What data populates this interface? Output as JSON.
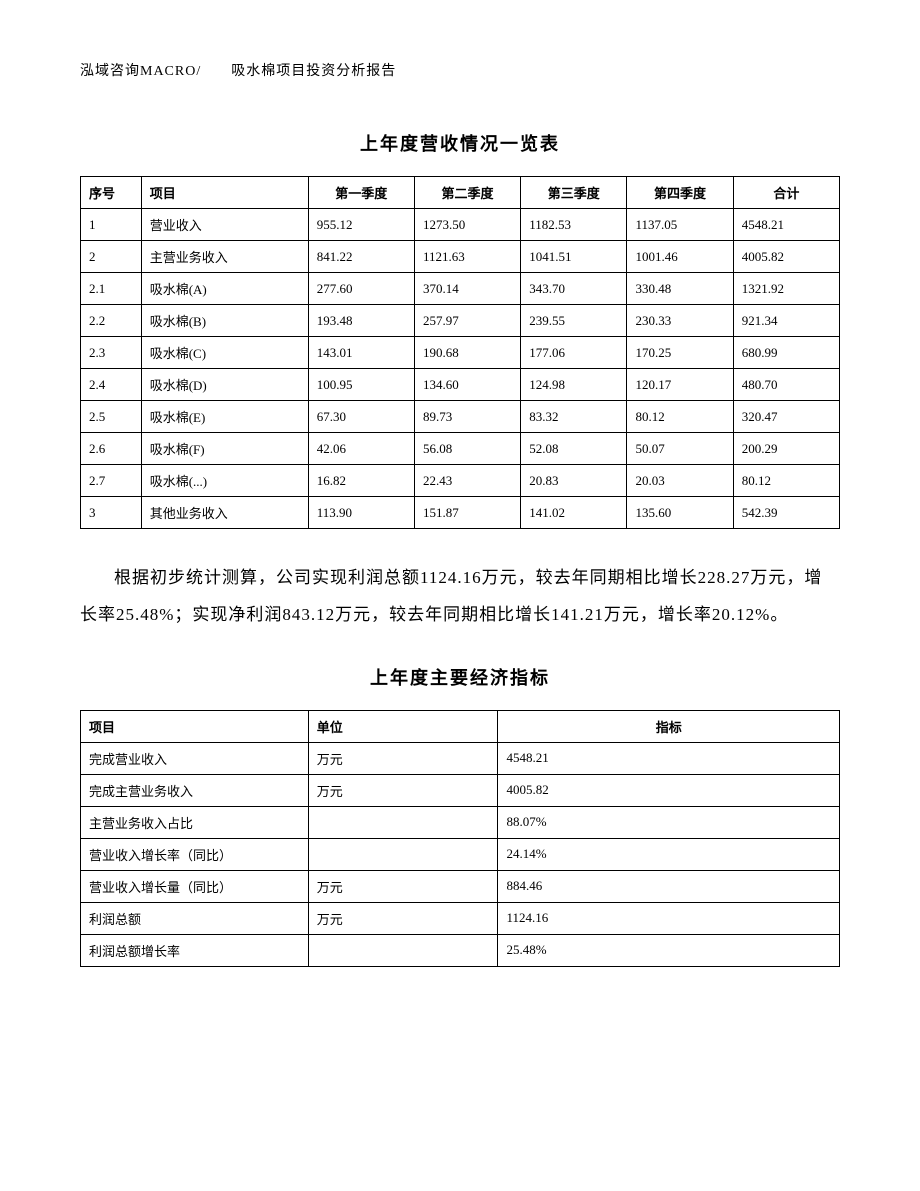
{
  "header": "泓域咨询MACRO/　　吸水棉项目投资分析报告",
  "table1": {
    "title": "上年度营收情况一览表",
    "headers": [
      "序号",
      "项目",
      "第一季度",
      "第二季度",
      "第三季度",
      "第四季度",
      "合计"
    ],
    "rows": [
      [
        "1",
        "营业收入",
        "955.12",
        "1273.50",
        "1182.53",
        "1137.05",
        "4548.21"
      ],
      [
        "2",
        "主营业务收入",
        "841.22",
        "1121.63",
        "1041.51",
        "1001.46",
        "4005.82"
      ],
      [
        "2.1",
        "吸水棉(A)",
        "277.60",
        "370.14",
        "343.70",
        "330.48",
        "1321.92"
      ],
      [
        "2.2",
        "吸水棉(B)",
        "193.48",
        "257.97",
        "239.55",
        "230.33",
        "921.34"
      ],
      [
        "2.3",
        "吸水棉(C)",
        "143.01",
        "190.68",
        "177.06",
        "170.25",
        "680.99"
      ],
      [
        "2.4",
        "吸水棉(D)",
        "100.95",
        "134.60",
        "124.98",
        "120.17",
        "480.70"
      ],
      [
        "2.5",
        "吸水棉(E)",
        "67.30",
        "89.73",
        "83.32",
        "80.12",
        "320.47"
      ],
      [
        "2.6",
        "吸水棉(F)",
        "42.06",
        "56.08",
        "52.08",
        "50.07",
        "200.29"
      ],
      [
        "2.7",
        "吸水棉(...)",
        "16.82",
        "22.43",
        "20.83",
        "20.03",
        "80.12"
      ],
      [
        "3",
        "其他业务收入",
        "113.90",
        "151.87",
        "141.02",
        "135.60",
        "542.39"
      ]
    ]
  },
  "paragraph": "根据初步统计测算，公司实现利润总额1124.16万元，较去年同期相比增长228.27万元，增长率25.48%；实现净利润843.12万元，较去年同期相比增长141.21万元，增长率20.12%。",
  "table2": {
    "title": "上年度主要经济指标",
    "headers": [
      "项目",
      "单位",
      "指标"
    ],
    "rows": [
      [
        "完成营业收入",
        "万元",
        "4548.21"
      ],
      [
        "完成主营业务收入",
        "万元",
        "4005.82"
      ],
      [
        "主营业务收入占比",
        "",
        "88.07%"
      ],
      [
        "营业收入增长率（同比）",
        "",
        "24.14%"
      ],
      [
        "营业收入增长量（同比）",
        "万元",
        "884.46"
      ],
      [
        "利润总额",
        "万元",
        "1124.16"
      ],
      [
        "利润总额增长率",
        "",
        "25.48%"
      ]
    ]
  }
}
